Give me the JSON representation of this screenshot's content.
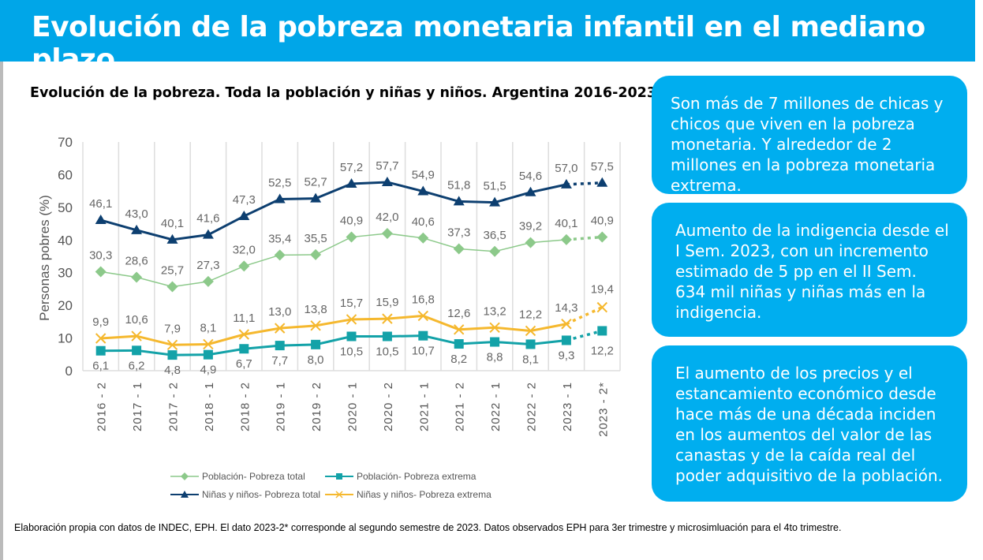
{
  "header": {
    "title": "Evolución de la pobreza monetaria infantil en el mediano plazo"
  },
  "chart_data": {
    "type": "line",
    "title": "Evolución de la pobreza. Toda la población y niñas y niños. Argentina 2016-2023",
    "ylabel": "Personas pobres (%)",
    "xlabel": "",
    "ylim": [
      0,
      70
    ],
    "yticks": [
      "0",
      "10",
      "20",
      "30",
      "40",
      "50",
      "60",
      "70"
    ],
    "grid": "vertical",
    "legend": "bottom",
    "categories": [
      "2016 - 2",
      "2017 - 1",
      "2017 - 2",
      "2018 - 1",
      "2018 - 2",
      "2019 - 1",
      "2019 - 2",
      "2020 - 1",
      "2020 - 2",
      "2021 - 1",
      "2021 - 2",
      "2022 - 1",
      "2022 - 2",
      "2023 - 1",
      "2023 - 2*"
    ],
    "series": [
      {
        "name": "Población- Pobreza total",
        "color": "#8cc98a",
        "marker": "diamond",
        "values": [
          30.3,
          28.6,
          25.7,
          27.3,
          32.0,
          35.4,
          35.5,
          40.9,
          42.0,
          40.6,
          37.3,
          36.5,
          39.2,
          40.1,
          40.9
        ],
        "labels": [
          "30,3",
          "28,6",
          "25,7",
          "27,3",
          "32,0",
          "35,4",
          "35,5",
          "40,9",
          "42,0",
          "40,6",
          "37,3",
          "36,5",
          "39,2",
          "40,1",
          "40,9"
        ]
      },
      {
        "name": "Población- Pobreza extrema",
        "color": "#13a2a8",
        "marker": "square",
        "values": [
          6.1,
          6.2,
          4.8,
          4.9,
          6.7,
          7.7,
          8.0,
          10.5,
          10.5,
          10.7,
          8.2,
          8.8,
          8.1,
          9.3,
          12.2
        ],
        "labels": [
          "6,1",
          "6,2",
          "4,8",
          "4,9",
          "6,7",
          "7,7",
          "8,0",
          "10,5",
          "10,5",
          "10,7",
          "8,2",
          "8,8",
          "8,1",
          "9,3",
          "12,2"
        ]
      },
      {
        "name": "Niñas y niños- Pobreza total",
        "color": "#0d3f70",
        "marker": "triangle",
        "values": [
          46.1,
          43.0,
          40.1,
          41.6,
          47.3,
          52.5,
          52.7,
          57.2,
          57.7,
          54.9,
          51.8,
          51.5,
          54.6,
          57.0,
          57.5
        ],
        "labels": [
          "46,1",
          "43,0",
          "40,1",
          "41,6",
          "47,3",
          "52,5",
          "52,7",
          "57,2",
          "57,7",
          "54,9",
          "51,8",
          "51,5",
          "54,6",
          "57,0",
          "57,5"
        ]
      },
      {
        "name": "Niñas y niños- Pobreza extrema",
        "color": "#f5b82e",
        "marker": "x",
        "values": [
          9.9,
          10.6,
          7.9,
          8.1,
          11.1,
          13.0,
          13.8,
          15.7,
          15.9,
          16.8,
          12.6,
          13.2,
          12.2,
          14.3,
          19.4
        ],
        "labels": [
          "9,9",
          "10,6",
          "7,9",
          "8,1",
          "11,1",
          "13,0",
          "13,8",
          "15,7",
          "15,9",
          "16,8",
          "12,6",
          "13,2",
          "12,2",
          "14,3",
          "19,4"
        ]
      }
    ],
    "last_point_dotted": true
  },
  "boxes": [
    "Son más de 7 millones de chicas y chicos que viven en la pobreza monetaria. Y alrededor de 2 millones en la pobreza monetaria extrema.",
    "Aumento de la indigencia desde el I Sem. 2023, con un incremento estimado de 5 pp en el II Sem. 634 mil niñas y niñas más en la indigencia.",
    "El aumento de los precios y el estancamiento económico desde hace más de una década inciden en los aumentos del valor de las canastas y de la caída real del poder adquisitivo de la población."
  ],
  "colors": {
    "header": "#00a6e8",
    "box": "#00aeef"
  },
  "footer": "Elaboración propia con datos de INDEC, EPH. El dato 2023-2* corresponde al segundo semestre de 2023. Datos observados EPH para 3er trimestre y microsimluación para el 4to trimestre."
}
